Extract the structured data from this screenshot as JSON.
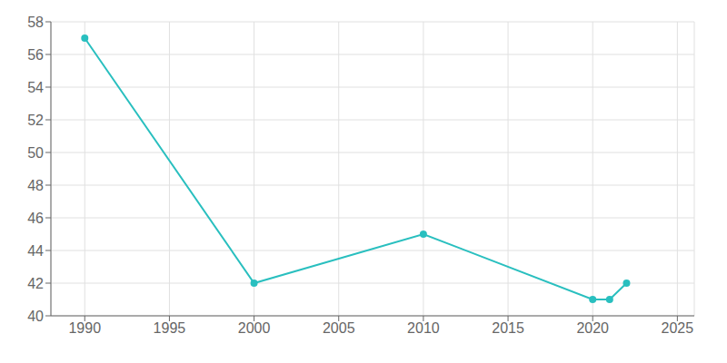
{
  "chart_data": {
    "type": "line",
    "x": [
      1990,
      2000,
      2010,
      2020,
      2021,
      2022
    ],
    "values": [
      57,
      42,
      45,
      41,
      41,
      42
    ],
    "color": "#29bfbf",
    "marker": "circle",
    "xlim": [
      1988,
      2026
    ],
    "xticks": [
      1990,
      1995,
      2000,
      2005,
      2010,
      2015,
      2020,
      2025
    ],
    "ylim": [
      40,
      58
    ],
    "yticks": [
      40,
      42,
      44,
      46,
      48,
      50,
      52,
      54,
      56,
      58
    ],
    "grid": true
  }
}
